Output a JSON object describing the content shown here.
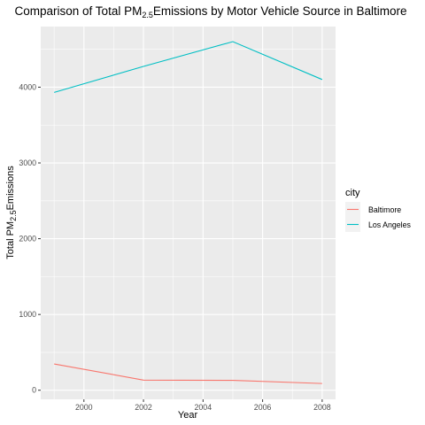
{
  "chart_data": {
    "type": "line",
    "title": {
      "prefix": "Comparison of Total PM",
      "subscript": "2.5",
      "suffix": "Emissions by Motor Vehicle Source in Baltimore"
    },
    "xlabel": "Year",
    "ylabel": {
      "prefix": "Total PM",
      "subscript": "2.5",
      "suffix": "Emissions"
    },
    "xlim": [
      1998.55,
      2008.45
    ],
    "ylim": [
      -120,
      4800
    ],
    "x_ticks": [
      2000,
      2002,
      2004,
      2006,
      2008
    ],
    "x_tick_labels": [
      "2000",
      "2002",
      "2004",
      "2006",
      "2008"
    ],
    "y_ticks": [
      0,
      1000,
      2000,
      3000,
      4000
    ],
    "y_tick_labels": [
      "0",
      "1000",
      "2000",
      "3000",
      "4000"
    ],
    "grid": true,
    "legend": {
      "title": "city",
      "position": "right"
    },
    "series": [
      {
        "name": "Baltimore",
        "color": "#F8766D",
        "x": [
          1999,
          2002,
          2005,
          2008
        ],
        "y": [
          347,
          134,
          130,
          89
        ]
      },
      {
        "name": "Los Angeles",
        "color": "#00BFC4",
        "x": [
          1999,
          2002,
          2005,
          2008
        ],
        "y": [
          3931,
          4274,
          4601,
          4101
        ]
      }
    ]
  }
}
